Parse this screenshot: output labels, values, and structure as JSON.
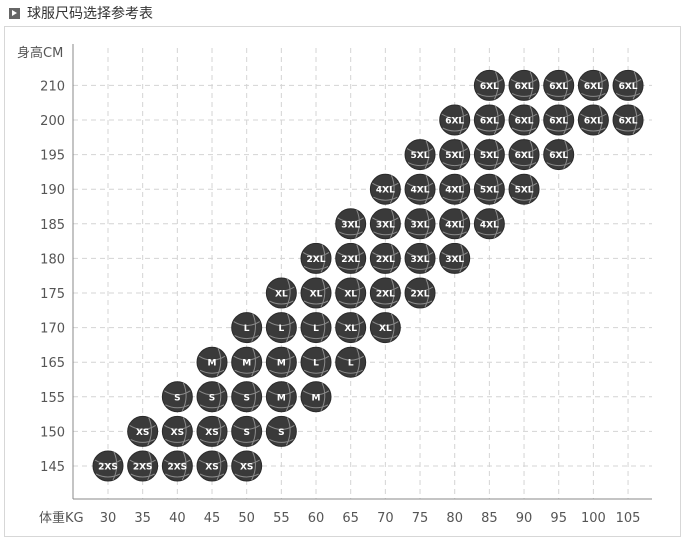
{
  "header": {
    "title": "球服尺码选择参考表",
    "icon": "play-square-icon"
  },
  "chart_data": {
    "type": "scatter",
    "title": "球服尺码选择参考表",
    "xlabel": "体重KG",
    "ylabel": "身高CM",
    "x_ticks": [
      30,
      35,
      40,
      45,
      50,
      55,
      60,
      65,
      70,
      75,
      80,
      85,
      90,
      95,
      100,
      105
    ],
    "y_ticks": [
      210,
      200,
      195,
      190,
      185,
      180,
      175,
      170,
      165,
      155,
      150,
      145
    ],
    "grid": true,
    "marker": "basketball-icon",
    "marker_color": "#3a3a3a",
    "points": [
      {
        "x": 30,
        "y": 145,
        "label": "2XS"
      },
      {
        "x": 35,
        "y": 145,
        "label": "2XS"
      },
      {
        "x": 40,
        "y": 145,
        "label": "2XS"
      },
      {
        "x": 45,
        "y": 145,
        "label": "XS"
      },
      {
        "x": 50,
        "y": 145,
        "label": "XS"
      },
      {
        "x": 35,
        "y": 150,
        "label": "XS"
      },
      {
        "x": 40,
        "y": 150,
        "label": "XS"
      },
      {
        "x": 45,
        "y": 150,
        "label": "XS"
      },
      {
        "x": 50,
        "y": 150,
        "label": "S"
      },
      {
        "x": 55,
        "y": 150,
        "label": "S"
      },
      {
        "x": 40,
        "y": 155,
        "label": "S"
      },
      {
        "x": 45,
        "y": 155,
        "label": "S"
      },
      {
        "x": 50,
        "y": 155,
        "label": "S"
      },
      {
        "x": 55,
        "y": 155,
        "label": "M"
      },
      {
        "x": 60,
        "y": 155,
        "label": "M"
      },
      {
        "x": 45,
        "y": 165,
        "label": "M"
      },
      {
        "x": 50,
        "y": 165,
        "label": "M"
      },
      {
        "x": 55,
        "y": 165,
        "label": "M"
      },
      {
        "x": 60,
        "y": 165,
        "label": "L"
      },
      {
        "x": 65,
        "y": 165,
        "label": "L"
      },
      {
        "x": 50,
        "y": 170,
        "label": "L"
      },
      {
        "x": 55,
        "y": 170,
        "label": "L"
      },
      {
        "x": 60,
        "y": 170,
        "label": "L"
      },
      {
        "x": 65,
        "y": 170,
        "label": "XL"
      },
      {
        "x": 70,
        "y": 170,
        "label": "XL"
      },
      {
        "x": 55,
        "y": 175,
        "label": "XL"
      },
      {
        "x": 60,
        "y": 175,
        "label": "XL"
      },
      {
        "x": 65,
        "y": 175,
        "label": "XL"
      },
      {
        "x": 70,
        "y": 175,
        "label": "2XL"
      },
      {
        "x": 75,
        "y": 175,
        "label": "2XL"
      },
      {
        "x": 60,
        "y": 180,
        "label": "2XL"
      },
      {
        "x": 65,
        "y": 180,
        "label": "2XL"
      },
      {
        "x": 70,
        "y": 180,
        "label": "2XL"
      },
      {
        "x": 75,
        "y": 180,
        "label": "3XL"
      },
      {
        "x": 80,
        "y": 180,
        "label": "3XL"
      },
      {
        "x": 65,
        "y": 185,
        "label": "3XL"
      },
      {
        "x": 70,
        "y": 185,
        "label": "3XL"
      },
      {
        "x": 75,
        "y": 185,
        "label": "3XL"
      },
      {
        "x": 80,
        "y": 185,
        "label": "4XL"
      },
      {
        "x": 85,
        "y": 185,
        "label": "4XL"
      },
      {
        "x": 70,
        "y": 190,
        "label": "4XL"
      },
      {
        "x": 75,
        "y": 190,
        "label": "4XL"
      },
      {
        "x": 80,
        "y": 190,
        "label": "4XL"
      },
      {
        "x": 85,
        "y": 190,
        "label": "5XL"
      },
      {
        "x": 90,
        "y": 190,
        "label": "5XL"
      },
      {
        "x": 75,
        "y": 195,
        "label": "5XL"
      },
      {
        "x": 80,
        "y": 195,
        "label": "5XL"
      },
      {
        "x": 85,
        "y": 195,
        "label": "5XL"
      },
      {
        "x": 90,
        "y": 195,
        "label": "6XL"
      },
      {
        "x": 95,
        "y": 195,
        "label": "6XL"
      },
      {
        "x": 80,
        "y": 200,
        "label": "6XL"
      },
      {
        "x": 85,
        "y": 200,
        "label": "6XL"
      },
      {
        "x": 90,
        "y": 200,
        "label": "6XL"
      },
      {
        "x": 95,
        "y": 200,
        "label": "6XL"
      },
      {
        "x": 100,
        "y": 200,
        "label": "6XL"
      },
      {
        "x": 105,
        "y": 200,
        "label": "6XL"
      },
      {
        "x": 85,
        "y": 210,
        "label": "6XL"
      },
      {
        "x": 90,
        "y": 210,
        "label": "6XL"
      },
      {
        "x": 95,
        "y": 210,
        "label": "6XL"
      },
      {
        "x": 100,
        "y": 210,
        "label": "6XL"
      },
      {
        "x": 105,
        "y": 210,
        "label": "6XL"
      }
    ]
  }
}
